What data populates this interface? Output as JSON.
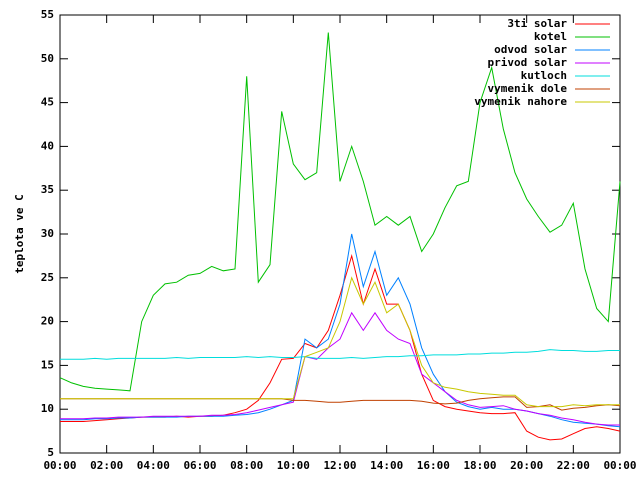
{
  "chart_data": {
    "type": "line",
    "ylabel": "teplota ve C",
    "x": [
      0,
      0.5,
      1,
      1.5,
      2,
      2.5,
      3,
      3.5,
      4,
      4.5,
      5,
      5.5,
      6,
      6.5,
      7,
      7.5,
      8,
      8.5,
      9,
      9.5,
      10,
      10.5,
      11,
      11.5,
      12,
      12.5,
      13,
      13.5,
      14,
      14.5,
      15,
      15.5,
      16,
      16.5,
      17,
      17.5,
      18,
      18.5,
      19,
      19.5,
      20,
      20.5,
      21,
      21.5,
      22,
      22.5,
      23,
      23.5,
      24
    ],
    "xlim": [
      0,
      24
    ],
    "xticks": [
      {
        "value": 0,
        "label": "00:00"
      },
      {
        "value": 2,
        "label": "02:00"
      },
      {
        "value": 4,
        "label": "04:00"
      },
      {
        "value": 6,
        "label": "06:00"
      },
      {
        "value": 8,
        "label": "08:00"
      },
      {
        "value": 10,
        "label": "10:00"
      },
      {
        "value": 12,
        "label": "12:00"
      },
      {
        "value": 14,
        "label": "14:00"
      },
      {
        "value": 16,
        "label": "16:00"
      },
      {
        "value": 18,
        "label": "18:00"
      },
      {
        "value": 20,
        "label": "20:00"
      },
      {
        "value": 22,
        "label": "22:00"
      },
      {
        "value": 24,
        "label": "00:00"
      }
    ],
    "ylim": [
      5,
      55
    ],
    "yticks": [
      5,
      10,
      15,
      20,
      25,
      30,
      35,
      40,
      45,
      50,
      55
    ],
    "legend": "top-right",
    "series": [
      {
        "name": "3ti solar",
        "color": "#ff0000",
        "values": [
          8.6,
          8.6,
          8.6,
          8.7,
          8.8,
          8.9,
          9,
          9.1,
          9.1,
          9.1,
          9.2,
          9.1,
          9.2,
          9.2,
          9.3,
          9.6,
          10,
          11,
          13,
          15.7,
          15.8,
          17.5,
          17,
          19,
          23,
          27.5,
          22,
          26,
          22,
          22,
          19,
          14,
          11,
          10.3,
          10,
          9.8,
          9.6,
          9.5,
          9.5,
          9.6,
          7.5,
          6.8,
          6.5,
          6.6,
          7.2,
          7.8,
          8,
          7.8,
          7.5
        ]
      },
      {
        "name": "kotel",
        "color": "#00c000",
        "values": [
          13.6,
          13,
          12.6,
          12.4,
          12.3,
          12.2,
          12.1,
          20,
          23,
          24.3,
          24.5,
          25.3,
          25.5,
          26.3,
          25.8,
          26,
          48,
          24.5,
          26.5,
          44,
          38,
          36.2,
          37,
          53,
          36,
          40,
          36,
          31,
          32,
          31,
          32,
          28,
          30,
          33,
          35.5,
          36,
          45,
          49,
          42,
          37,
          34,
          32,
          30.2,
          31,
          33.5,
          26,
          21.5,
          20,
          36
        ]
      },
      {
        "name": "odvod solar",
        "color": "#0080ff",
        "values": [
          8.8,
          8.8,
          8.8,
          8.9,
          8.9,
          9,
          9,
          9.1,
          9.1,
          9.1,
          9.1,
          9.2,
          9.2,
          9.2,
          9.2,
          9.3,
          9.4,
          9.6,
          10,
          10.5,
          11,
          18,
          17,
          18,
          22,
          30,
          24,
          28,
          23,
          25,
          22,
          17,
          14,
          12,
          10.8,
          10.3,
          10,
          10.2,
          10,
          10,
          9.8,
          9.5,
          9.2,
          8.8,
          8.5,
          8.4,
          8.3,
          8.1,
          8
        ]
      },
      {
        "name": "privod solar",
        "color": "#c000ff",
        "values": [
          8.9,
          8.9,
          8.9,
          9,
          9,
          9.1,
          9.1,
          9.1,
          9.2,
          9.2,
          9.2,
          9.2,
          9.2,
          9.3,
          9.3,
          9.4,
          9.6,
          9.9,
          10.2,
          10.5,
          10.8,
          16,
          15.7,
          17,
          18,
          21,
          19,
          21,
          19,
          18,
          17.5,
          14,
          13,
          12,
          11,
          10.5,
          10.2,
          10.3,
          10.4,
          10,
          9.8,
          9.5,
          9.3,
          9,
          8.8,
          8.5,
          8.3,
          8.2,
          8.2
        ]
      },
      {
        "name": "kutloch",
        "color": "#00dddd",
        "values": [
          15.7,
          15.7,
          15.7,
          15.8,
          15.7,
          15.8,
          15.8,
          15.8,
          15.8,
          15.8,
          15.9,
          15.8,
          15.9,
          15.9,
          15.9,
          15.9,
          16,
          15.9,
          16,
          15.9,
          15.9,
          16,
          15.8,
          15.8,
          15.8,
          15.9,
          15.8,
          15.9,
          16,
          16,
          16.1,
          16.1,
          16.2,
          16.2,
          16.2,
          16.3,
          16.3,
          16.4,
          16.4,
          16.5,
          16.5,
          16.6,
          16.8,
          16.7,
          16.7,
          16.6,
          16.6,
          16.7,
          16.7
        ]
      },
      {
        "name": "vymenik dole",
        "color": "#c04000",
        "values": [
          11.2,
          11.2,
          11.2,
          11.2,
          11.2,
          11.2,
          11.2,
          11.2,
          11.2,
          11.2,
          11.2,
          11.2,
          11.2,
          11.2,
          11.2,
          11.2,
          11.2,
          11.2,
          11.2,
          11.2,
          11,
          11,
          10.9,
          10.8,
          10.8,
          10.9,
          11,
          11,
          11,
          11,
          11,
          10.9,
          10.7,
          10.6,
          10.7,
          11,
          11.2,
          11.3,
          11.4,
          11.4,
          10.2,
          10.3,
          10.5,
          9.9,
          10.1,
          10.2,
          10.4,
          10.5,
          10.4
        ]
      },
      {
        "name": "vymenik nahore",
        "color": "#c8c800",
        "values": [
          11.2,
          11.2,
          11.2,
          11.2,
          11.2,
          11.2,
          11.2,
          11.2,
          11.2,
          11.2,
          11.2,
          11.2,
          11.2,
          11.2,
          11.2,
          11.2,
          11.2,
          11.2,
          11.2,
          11.2,
          11.2,
          16,
          16.5,
          17,
          20,
          25,
          22,
          24.5,
          21,
          22,
          19,
          15,
          13,
          12.5,
          12.3,
          12,
          11.8,
          11.7,
          11.6,
          11.6,
          10.5,
          10.3,
          10.3,
          10.3,
          10.5,
          10.4,
          10.5,
          10.5,
          10.5
        ]
      }
    ]
  }
}
